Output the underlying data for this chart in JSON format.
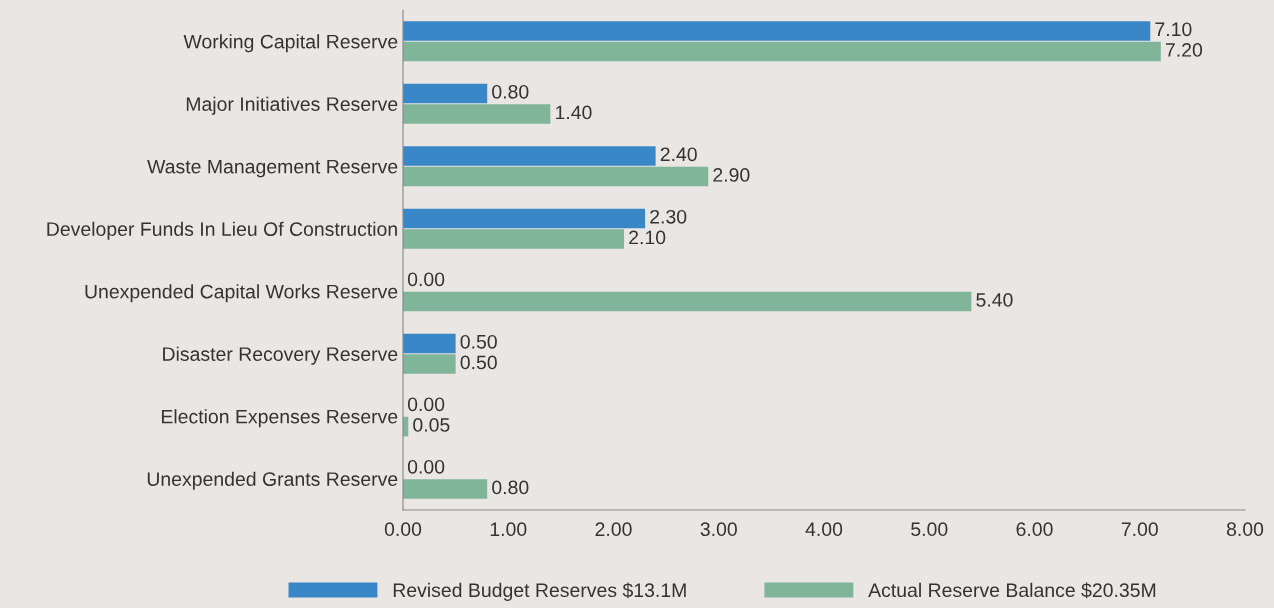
{
  "chart_data": {
    "type": "bar",
    "orientation": "horizontal",
    "categories": [
      "Working Capital Reserve",
      "Major Initiatives Reserve",
      "Waste Management Reserve",
      "Developer Funds In Lieu Of Construction",
      "Unexpended Capital Works Reserve",
      "Disaster Recovery Reserve",
      "Election Expenses Reserve",
      "Unexpended Grants Reserve"
    ],
    "series": [
      {
        "name": "Revised Budget Reserves $13.1M",
        "color": "#3a87c8",
        "values": [
          7.1,
          0.8,
          2.4,
          2.3,
          0,
          0.5,
          0,
          0
        ],
        "value_labels": [
          "7.10",
          "0.80",
          "2.40",
          "2.30",
          "0.00",
          "0.50",
          "0.00",
          "0.00"
        ]
      },
      {
        "name": "Actual Reserve Balance $20.35M",
        "color": "#80b59a",
        "values": [
          7.2,
          1.4,
          2.9,
          2.1,
          5.4,
          0.5,
          0.05,
          0.8
        ],
        "value_labels": [
          "7.20",
          "1.40",
          "2.90",
          "2.10",
          "5.40",
          "0.50",
          "0.05",
          "0.80"
        ]
      }
    ],
    "xlim": [
      0,
      8
    ],
    "xticks": [
      {
        "value": 0,
        "label": "0.00"
      },
      {
        "value": 1,
        "label": "1.00"
      },
      {
        "value": 2,
        "label": "2.00"
      },
      {
        "value": 3,
        "label": "3.00"
      },
      {
        "value": 4,
        "label": "4.00"
      },
      {
        "value": 5,
        "label": "5.00"
      },
      {
        "value": 6,
        "label": "6.00"
      },
      {
        "value": 7,
        "label": "7.00"
      },
      {
        "value": 8,
        "label": "8.00"
      }
    ],
    "grid": false,
    "legend": "bottom"
  }
}
